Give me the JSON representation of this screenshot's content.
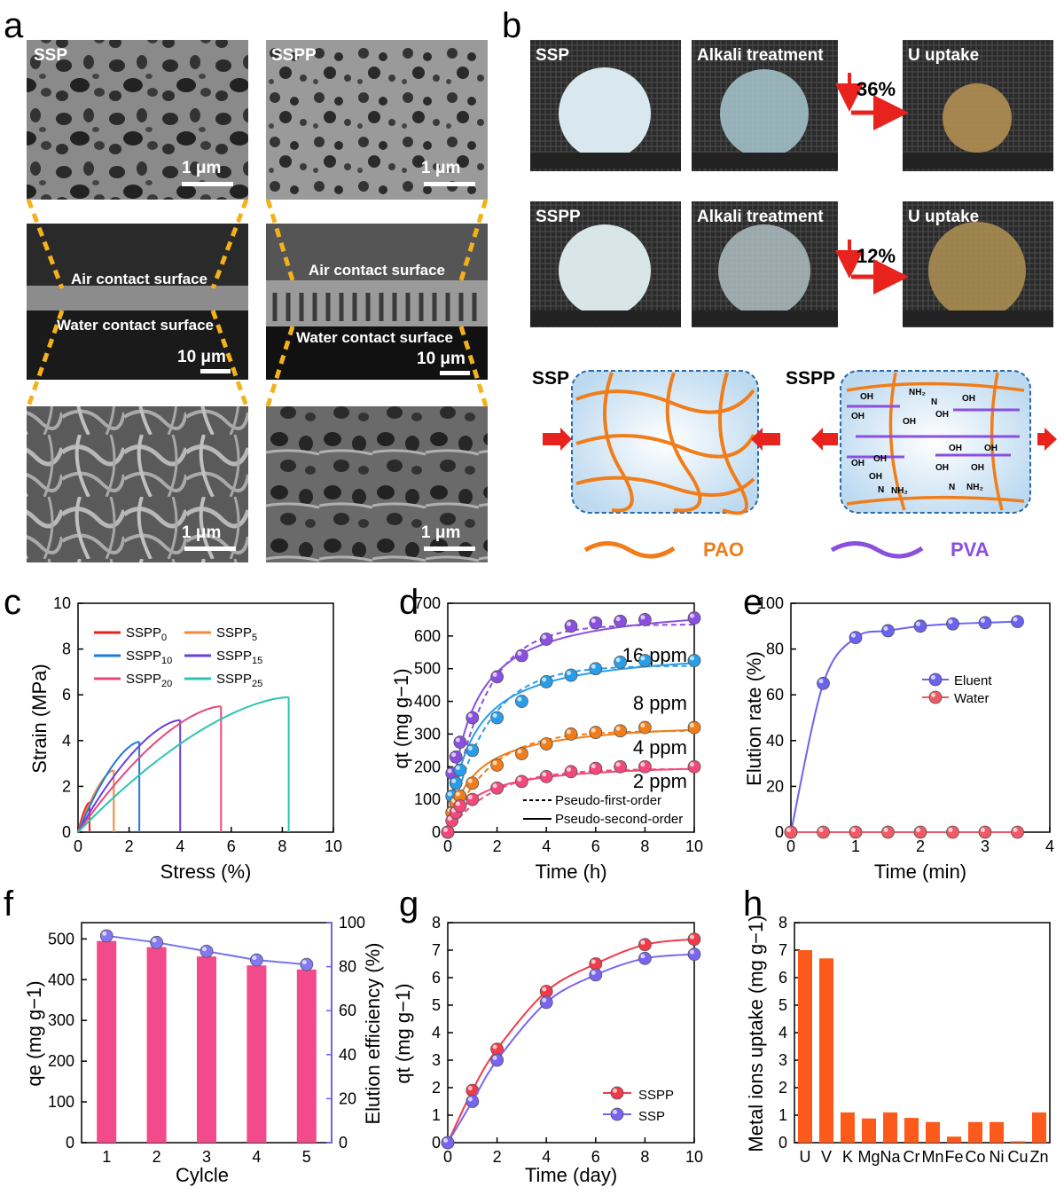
{
  "panels": [
    "a",
    "b",
    "c",
    "d",
    "e",
    "f",
    "g",
    "h"
  ],
  "colors": {
    "pao": "#f07d1a",
    "pva": "#8b4fe0",
    "red": "#e8231d",
    "gold": "#f3b21c",
    "pink": "#f24a8a",
    "blue": "#6a63f2",
    "orange": "#fb5a1a"
  },
  "panel_a": {
    "sem_top_left_label": "SSP",
    "sem_top_right_label": "SSPP",
    "scale_1um": "1 μm",
    "scale_10um": "10 μm",
    "air_surface": "Air contact surface",
    "water_surface": "Water contact surface"
  },
  "panel_b": {
    "row1": [
      "SSP",
      "Alkali treatment",
      "U uptake"
    ],
    "row2": [
      "SSPP",
      "Alkali treatment",
      "U uptake"
    ],
    "shrink_ssp": "36%",
    "shrink_sspp": "12%",
    "scheme_ssp": "SSP",
    "scheme_sspp": "SSPP",
    "oh": "OH",
    "nh2": "NH₂",
    "n": "N",
    "legend_pao": "PAO",
    "legend_pva": "PVA"
  },
  "chart_data": [
    {
      "panel": "c",
      "type": "line",
      "xlabel": "Stress (%)",
      "ylabel": "Strain (MPa)",
      "xlim": [
        0,
        10
      ],
      "ylim": [
        0,
        10
      ],
      "xticks": [
        0,
        2,
        4,
        6,
        8,
        10
      ],
      "yticks": [
        0,
        2,
        4,
        6,
        8,
        10
      ],
      "series": [
        {
          "name": "SSPP0",
          "sub": "0",
          "color": "#e8231d",
          "end": [
            0.45,
            1.3
          ]
        },
        {
          "name": "SSPP5",
          "sub": "5",
          "color": "#f08a3c",
          "end": [
            1.4,
            2.7
          ]
        },
        {
          "name": "SSPP10",
          "sub": "10",
          "color": "#1f7ae0",
          "end": [
            2.4,
            3.95
          ]
        },
        {
          "name": "SSPP15",
          "sub": "15",
          "color": "#6a3fe0",
          "end": [
            4.0,
            4.9
          ]
        },
        {
          "name": "SSPP20",
          "sub": "20",
          "color": "#e8487a",
          "end": [
            5.6,
            5.5
          ]
        },
        {
          "name": "SSPP25",
          "sub": "25",
          "color": "#2bc4b4",
          "end": [
            8.25,
            5.9
          ]
        }
      ]
    },
    {
      "panel": "d",
      "type": "scatter",
      "xlabel": "Time (h)",
      "ylabel": "qt (mg g−1)",
      "xlim": [
        0,
        10
      ],
      "ylim": [
        0,
        700
      ],
      "xticks": [
        0,
        2,
        4,
        6,
        8,
        10
      ],
      "yticks": [
        0,
        100,
        200,
        300,
        400,
        500,
        600,
        700
      ],
      "x": [
        0,
        0.17,
        0.33,
        0.5,
        1,
        2,
        3,
        4,
        5,
        6,
        7,
        8,
        10
      ],
      "series": [
        {
          "name": "16 ppm",
          "color": "#8b4fe0",
          "values": [
            0,
            180,
            230,
            275,
            350,
            475,
            540,
            590,
            630,
            640,
            645,
            650,
            655
          ]
        },
        {
          "name": "8 ppm",
          "color": "#2a9de8",
          "values": [
            0,
            110,
            150,
            190,
            250,
            350,
            400,
            460,
            480,
            500,
            520,
            525,
            525
          ]
        },
        {
          "name": "4 ppm",
          "color": "#f07d1a",
          "values": [
            0,
            60,
            90,
            110,
            150,
            205,
            240,
            270,
            300,
            305,
            310,
            320,
            320
          ]
        },
        {
          "name": "2 ppm",
          "color": "#f2487a",
          "values": [
            0,
            35,
            60,
            80,
            100,
            135,
            155,
            170,
            185,
            195,
            200,
            200,
            200
          ]
        }
      ],
      "legend": [
        "Pseudo-first-order",
        "Pseudo-second-order"
      ]
    },
    {
      "panel": "e",
      "type": "line",
      "xlabel": "Time (min)",
      "ylabel": "Elution rate (%)",
      "xlim": [
        0,
        4
      ],
      "ylim": [
        0,
        100
      ],
      "xticks": [
        0,
        1,
        2,
        3,
        4
      ],
      "yticks": [
        0,
        20,
        40,
        60,
        80,
        100
      ],
      "x": [
        0,
        0.5,
        1,
        1.5,
        2,
        2.5,
        3,
        3.5
      ],
      "series": [
        {
          "name": "Eluent",
          "color": "#6a63f2",
          "values": [
            0,
            65,
            85,
            88,
            90,
            91,
            91.5,
            92
          ]
        },
        {
          "name": "Water",
          "color": "#f05a66",
          "values": [
            0,
            0,
            0,
            0,
            0,
            0,
            0,
            0
          ]
        }
      ]
    },
    {
      "panel": "f",
      "type": "bar",
      "xlabel": "Cylcle",
      "ylabel": "qe (mg g−1)",
      "y2label": "Elution efficiency (%)",
      "categories": [
        "1",
        "2",
        "3",
        "4",
        "5"
      ],
      "ylim": [
        0,
        540
      ],
      "y2lim": [
        0,
        100
      ],
      "yticks": [
        0,
        100,
        200,
        300,
        400,
        500
      ],
      "y2ticks": [
        0,
        20,
        40,
        60,
        80,
        100
      ],
      "values": [
        495,
        480,
        457,
        435,
        425
      ],
      "efficiency": [
        94,
        91,
        87,
        83,
        81
      ]
    },
    {
      "panel": "g",
      "type": "line",
      "xlabel": "Time (day)",
      "ylabel": "qt (mg g−1)",
      "xlim": [
        0,
        10
      ],
      "ylim": [
        0,
        8
      ],
      "xticks": [
        0,
        2,
        4,
        6,
        8,
        10
      ],
      "yticks": [
        0,
        1,
        2,
        3,
        4,
        5,
        6,
        7,
        8
      ],
      "x": [
        0,
        1,
        2,
        4,
        6,
        8,
        10
      ],
      "series": [
        {
          "name": "SSPP",
          "color": "#f23a4a",
          "values": [
            0,
            1.9,
            3.4,
            5.5,
            6.5,
            7.2,
            7.4
          ]
        },
        {
          "name": "SSP",
          "color": "#7b63f2",
          "values": [
            0,
            1.5,
            3.0,
            5.1,
            6.1,
            6.7,
            6.85
          ]
        }
      ]
    },
    {
      "panel": "h",
      "type": "bar",
      "ylabel": "Metal ions uptake (mg g−1)",
      "categories": [
        "U",
        "V",
        "K",
        "Mg",
        "Na",
        "Cr",
        "Mn",
        "Fe",
        "Co",
        "Ni",
        "Cu",
        "Zn"
      ],
      "ylim": [
        0,
        8
      ],
      "yticks": [
        0,
        1,
        2,
        3,
        4,
        5,
        6,
        7,
        8
      ],
      "values": [
        7.0,
        6.7,
        1.1,
        0.88,
        1.1,
        0.9,
        0.75,
        0.22,
        0.75,
        0.75,
        0.05,
        1.1
      ]
    }
  ]
}
